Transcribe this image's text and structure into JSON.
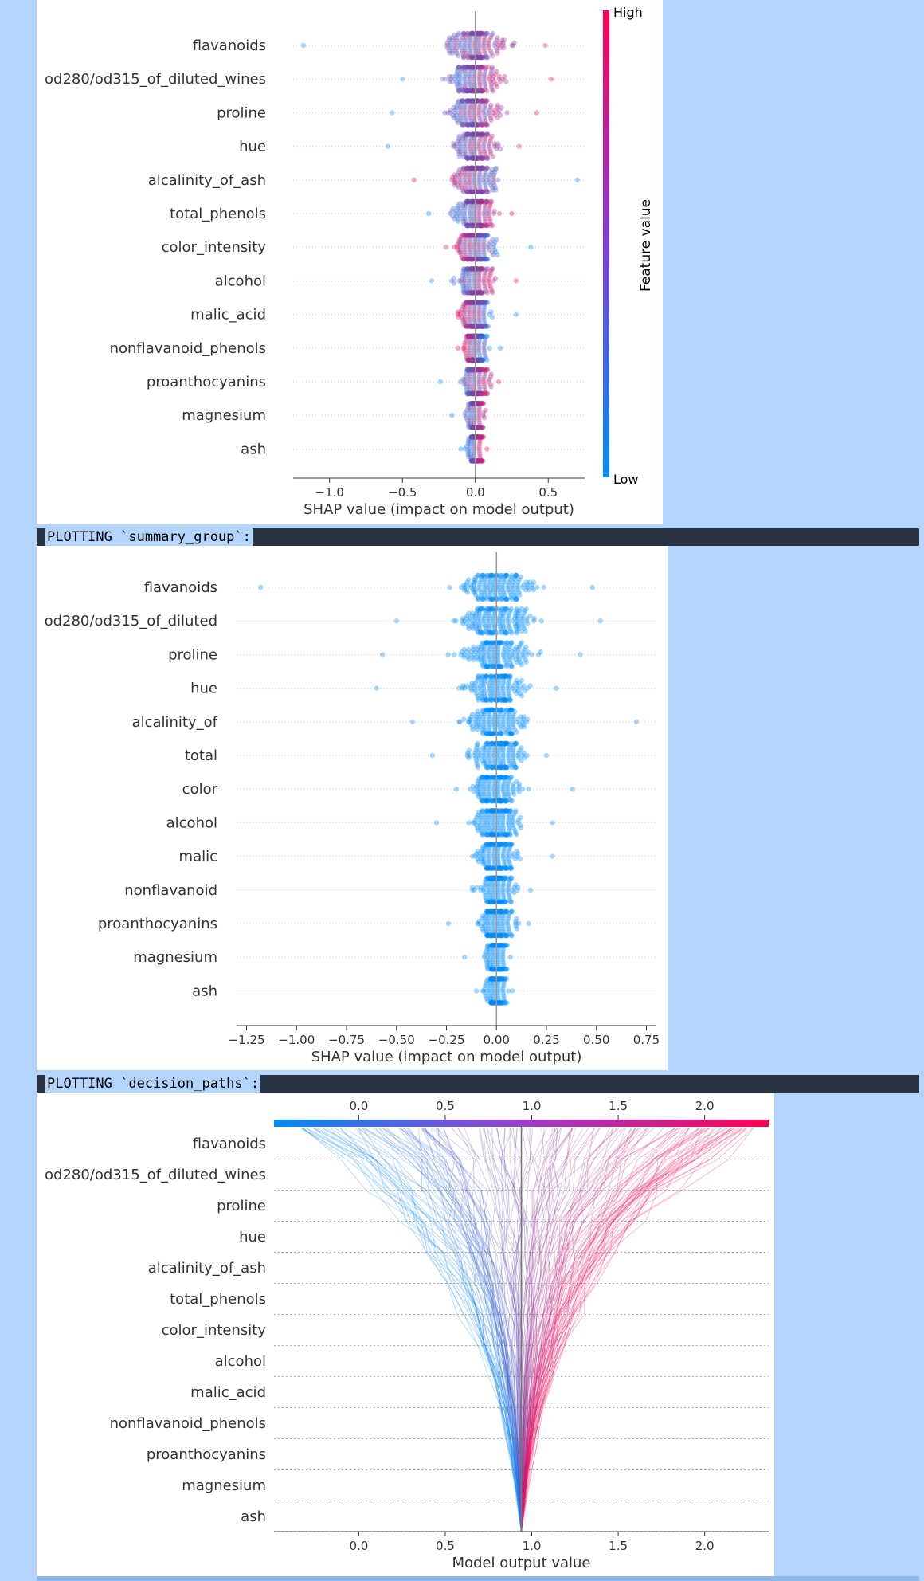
{
  "banners": {
    "summary_group": "PLOTTING `summary_group`:",
    "decision_paths": "PLOTTING `decision_paths`:"
  },
  "colors": {
    "high": "#ff0052",
    "low": "#008bfb",
    "grid": "#cccccc",
    "axis": "#333333",
    "text": "#333333"
  },
  "chart_data": [
    {
      "type": "scatter",
      "subtype": "shap-beeswarm",
      "xlabel": "SHAP value (impact on model output)",
      "xlim": [
        -1.25,
        0.75
      ],
      "xticks": [
        -1.0,
        -0.5,
        0.0,
        0.5
      ],
      "tick_labels": [
        "−1.0",
        "−0.5",
        "0.0",
        "0.5"
      ],
      "colorbar": {
        "label": "Feature value",
        "high": "High",
        "low": "Low"
      },
      "features": [
        {
          "name": "flavanoids",
          "min": -1.18,
          "max": 0.48,
          "spread": 0.18,
          "sign": -1
        },
        {
          "name": "od280/od315_of_diluted_wines",
          "min": -0.5,
          "max": 0.52,
          "spread": 0.17,
          "sign": -1
        },
        {
          "name": "proline",
          "min": -0.57,
          "max": 0.42,
          "spread": 0.16,
          "sign": -1
        },
        {
          "name": "hue",
          "min": -0.6,
          "max": 0.3,
          "spread": 0.14,
          "sign": -1
        },
        {
          "name": "alcalinity_of_ash",
          "min": -0.42,
          "max": 0.7,
          "spread": 0.14,
          "sign": 1
        },
        {
          "name": "total_phenols",
          "min": -0.32,
          "max": 0.25,
          "spread": 0.12,
          "sign": -1
        },
        {
          "name": "color_intensity",
          "min": -0.2,
          "max": 0.38,
          "spread": 0.12,
          "sign": 1
        },
        {
          "name": "alcohol",
          "min": -0.3,
          "max": 0.28,
          "spread": 0.11,
          "sign": -1
        },
        {
          "name": "malic_acid",
          "min": -0.12,
          "max": 0.28,
          "spread": 0.09,
          "sign": 1
        },
        {
          "name": "nonflavanoid_phenols",
          "min": -0.12,
          "max": 0.17,
          "spread": 0.08,
          "sign": 1
        },
        {
          "name": "proanthocyanins",
          "min": -0.24,
          "max": 0.16,
          "spread": 0.08,
          "sign": -1
        },
        {
          "name": "magnesium",
          "min": -0.16,
          "max": 0.07,
          "spread": 0.05,
          "sign": -1
        },
        {
          "name": "ash",
          "min": -0.1,
          "max": 0.08,
          "spread": 0.05,
          "sign": -1
        }
      ]
    },
    {
      "type": "scatter",
      "subtype": "shap-beeswarm-grouped",
      "xlabel": "SHAP value (impact on model output)",
      "xlim": [
        -1.3,
        0.8
      ],
      "xticks": [
        -1.25,
        -1.0,
        -0.75,
        -0.5,
        -0.25,
        0.0,
        0.25,
        0.5,
        0.75
      ],
      "tick_labels": [
        "−1.25",
        "−1.00",
        "−0.75",
        "−0.50",
        "−0.25",
        "0.00",
        "0.25",
        "0.50",
        "0.75"
      ],
      "features": [
        {
          "name": "flavanoids",
          "min": -1.18,
          "max": 0.48,
          "spread": 0.18
        },
        {
          "name": "od280/od315_of_diluted",
          "min": -0.5,
          "max": 0.52,
          "spread": 0.17
        },
        {
          "name": "proline",
          "min": -0.57,
          "max": 0.42,
          "spread": 0.16
        },
        {
          "name": "hue",
          "min": -0.6,
          "max": 0.3,
          "spread": 0.14
        },
        {
          "name": "alcalinity_of",
          "min": -0.42,
          "max": 0.7,
          "spread": 0.14
        },
        {
          "name": "total",
          "min": -0.32,
          "max": 0.25,
          "spread": 0.12
        },
        {
          "name": "color",
          "min": -0.2,
          "max": 0.38,
          "spread": 0.12
        },
        {
          "name": "alcohol",
          "min": -0.3,
          "max": 0.28,
          "spread": 0.11
        },
        {
          "name": "malic",
          "min": -0.12,
          "max": 0.28,
          "spread": 0.09
        },
        {
          "name": "nonflavanoid",
          "min": -0.12,
          "max": 0.17,
          "spread": 0.08
        },
        {
          "name": "proanthocyanins",
          "min": -0.24,
          "max": 0.16,
          "spread": 0.08
        },
        {
          "name": "magnesium",
          "min": -0.16,
          "max": 0.07,
          "spread": 0.05
        },
        {
          "name": "ash",
          "min": -0.1,
          "max": 0.08,
          "spread": 0.05
        }
      ]
    },
    {
      "type": "line",
      "subtype": "shap-decision-plot",
      "xlabel": "Model output value",
      "xlim": [
        -0.49,
        2.37
      ],
      "base_value": 0.94,
      "xticks": [
        0.0,
        0.5,
        1.0,
        1.5,
        2.0
      ],
      "tick_labels": [
        "0.0",
        "0.5",
        "1.0",
        "1.5",
        "2.0"
      ],
      "features": [
        "flavanoids",
        "od280/od315_of_diluted_wines",
        "proline",
        "hue",
        "alcalinity_of_ash",
        "total_phenols",
        "color_intensity",
        "alcohol",
        "malic_acid",
        "nonflavanoid_phenols",
        "proanthocyanins",
        "magnesium",
        "ash"
      ],
      "num_samples": 178,
      "output_range": [
        -0.35,
        2.3
      ]
    }
  ]
}
